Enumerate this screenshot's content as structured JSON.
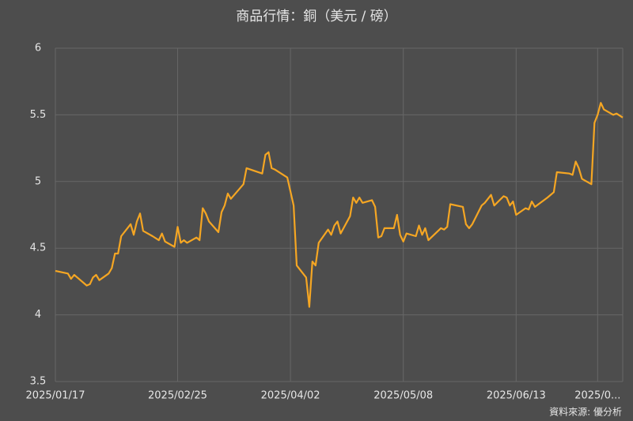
{
  "chart_data": {
    "type": "line",
    "title": "商品行情：銅（美元 / 磅）",
    "source": "資料來源: 優分析",
    "x": [
      "2025/01/17",
      "2025/01/21",
      "2025/01/22",
      "2025/01/23",
      "2025/01/24",
      "2025/01/27",
      "2025/01/28",
      "2025/01/29",
      "2025/01/30",
      "2025/01/31",
      "2025/02/03",
      "2025/02/04",
      "2025/02/05",
      "2025/02/06",
      "2025/02/07",
      "2025/02/10",
      "2025/02/11",
      "2025/02/12",
      "2025/02/13",
      "2025/02/14",
      "2025/02/17",
      "2025/02/19",
      "2025/02/20",
      "2025/02/21",
      "2025/02/24",
      "2025/02/25",
      "2025/02/26",
      "2025/02/27",
      "2025/02/28",
      "2025/03/03",
      "2025/03/04",
      "2025/03/05",
      "2025/03/06",
      "2025/03/07",
      "2025/03/10",
      "2025/03/11",
      "2025/03/12",
      "2025/03/13",
      "2025/03/14",
      "2025/03/18",
      "2025/03/19",
      "2025/03/24",
      "2025/03/25",
      "2025/03/26",
      "2025/03/27",
      "2025/03/28",
      "2025/04/01",
      "2025/04/03",
      "2025/04/04",
      "2025/04/07",
      "2025/04/08",
      "2025/04/09",
      "2025/04/10",
      "2025/04/11",
      "2025/04/14",
      "2025/04/15",
      "2025/04/16",
      "2025/04/17",
      "2025/04/18",
      "2025/04/21",
      "2025/04/22",
      "2025/04/23",
      "2025/04/24",
      "2025/04/25",
      "2025/04/28",
      "2025/04/29",
      "2025/04/30",
      "2025/05/01",
      "2025/05/02",
      "2025/05/05",
      "2025/05/06",
      "2025/05/07",
      "2025/05/08",
      "2025/05/09",
      "2025/05/12",
      "2025/05/13",
      "2025/05/14",
      "2025/05/15",
      "2025/05/16",
      "2025/05/20",
      "2025/05/21",
      "2025/05/22",
      "2025/05/23",
      "2025/05/27",
      "2025/05/28",
      "2025/05/29",
      "2025/05/30",
      "2025/06/02",
      "2025/06/03",
      "2025/06/05",
      "2025/06/06",
      "2025/06/09",
      "2025/06/10",
      "2025/06/11",
      "2025/06/12",
      "2025/06/13",
      "2025/06/16",
      "2025/06/17",
      "2025/06/18",
      "2025/06/19",
      "2025/06/23",
      "2025/06/25",
      "2025/06/26",
      "2025/06/30",
      "2025/07/01",
      "2025/07/02",
      "2025/07/03",
      "2025/07/04",
      "2025/07/07",
      "2025/07/08",
      "2025/07/09",
      "2025/07/10",
      "2025/07/11",
      "2025/07/14",
      "2025/07/15",
      "2025/07/17"
    ],
    "series": [
      {
        "name": "銅",
        "color": "#f5a623",
        "values": [
          4.33,
          4.31,
          4.27,
          4.3,
          4.28,
          4.22,
          4.23,
          4.28,
          4.3,
          4.26,
          4.31,
          4.35,
          4.46,
          4.46,
          4.59,
          4.68,
          4.6,
          4.7,
          4.76,
          4.63,
          4.59,
          4.56,
          4.61,
          4.55,
          4.51,
          4.66,
          4.54,
          4.56,
          4.54,
          4.58,
          4.56,
          4.8,
          4.76,
          4.7,
          4.62,
          4.77,
          4.82,
          4.91,
          4.87,
          4.98,
          5.1,
          5.06,
          5.2,
          5.22,
          5.1,
          5.09,
          5.03,
          4.82,
          4.37,
          4.28,
          4.06,
          4.4,
          4.37,
          4.54,
          4.64,
          4.6,
          4.67,
          4.7,
          4.61,
          4.74,
          4.88,
          4.84,
          4.88,
          4.84,
          4.86,
          4.81,
          4.58,
          4.59,
          4.65,
          4.65,
          4.75,
          4.6,
          4.55,
          4.61,
          4.59,
          4.67,
          4.6,
          4.65,
          4.56,
          4.65,
          4.64,
          4.66,
          4.83,
          4.81,
          4.68,
          4.65,
          4.68,
          4.82,
          4.84,
          4.9,
          4.82,
          4.89,
          4.88,
          4.82,
          4.85,
          4.75,
          4.8,
          4.79,
          4.85,
          4.81,
          4.88,
          4.92,
          5.07,
          5.06,
          5.05,
          5.15,
          5.1,
          5.02,
          4.98,
          5.44,
          5.5,
          5.59,
          5.54,
          5.5,
          5.51,
          5.48
        ]
      }
    ],
    "xlim": [
      "2025/01/17",
      "2025/07/17"
    ],
    "xticks": [
      "2025/01/17",
      "2025/02/25",
      "2025/04/02",
      "2025/05/08",
      "2025/06/13",
      {
        "value": "2025/07/09",
        "label": "2025/0..."
      }
    ],
    "ylim": [
      3.5,
      6
    ],
    "yticks": [
      3.5,
      4,
      4.5,
      5,
      5.5,
      6
    ],
    "grid": true
  }
}
